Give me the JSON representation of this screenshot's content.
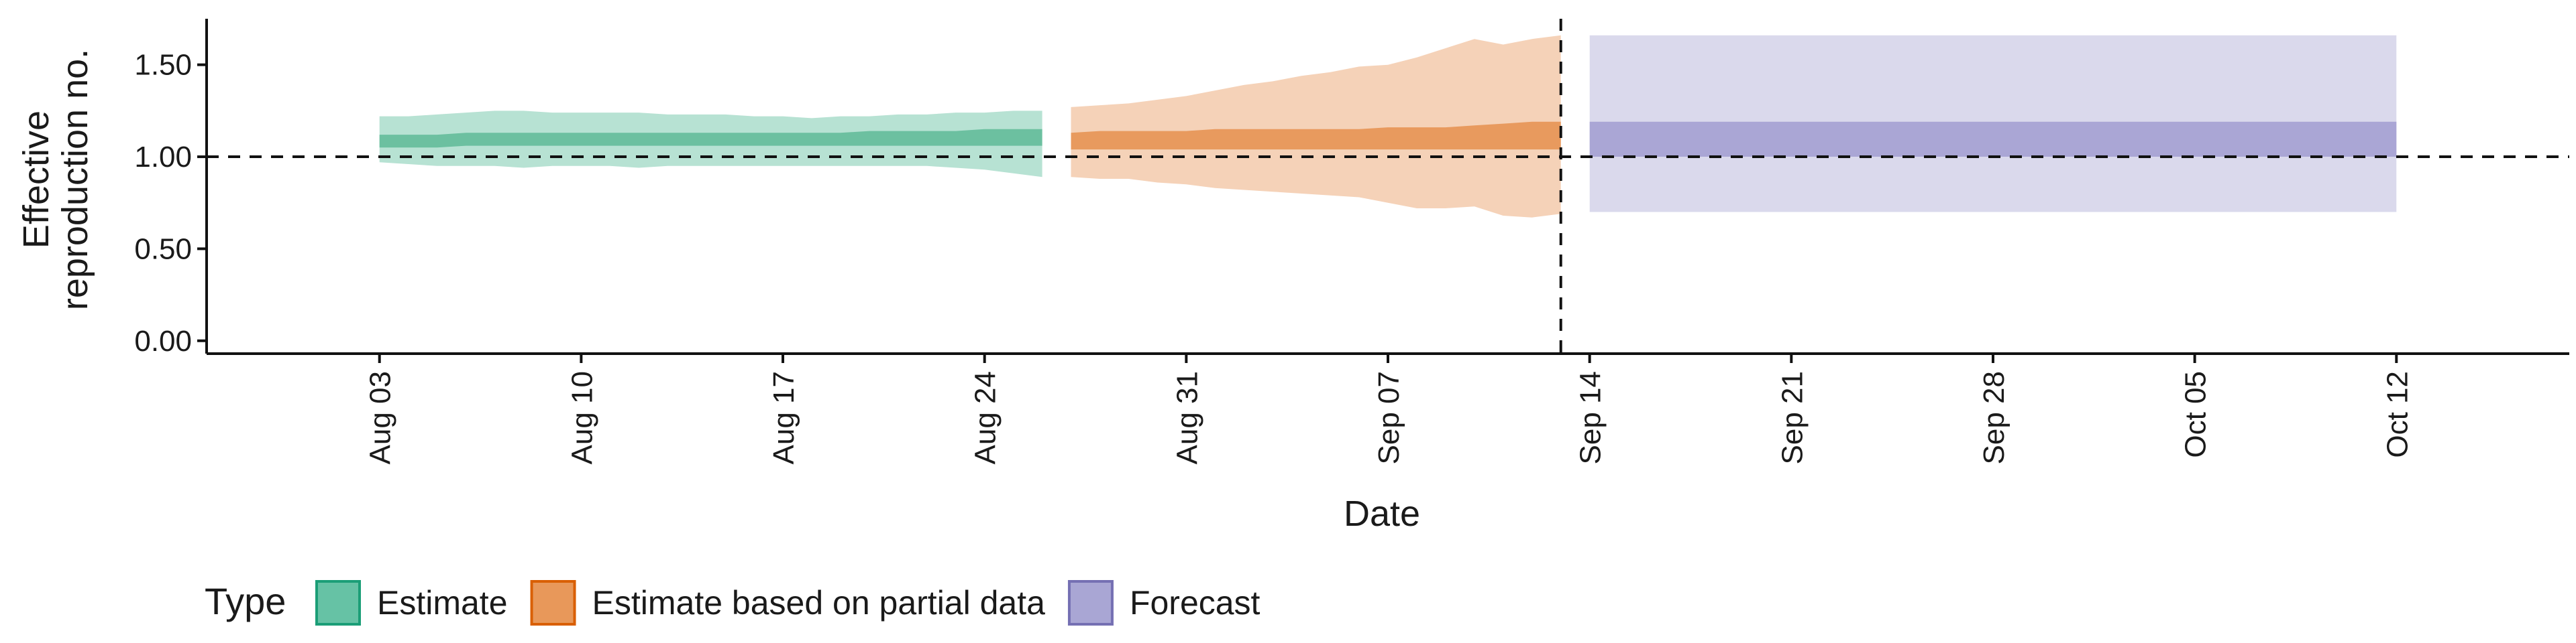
{
  "chart_data": {
    "type": "area",
    "xlabel": "Date",
    "ylabel_lines": [
      "Effective",
      "reproduction no."
    ],
    "yticks": [
      "0.00",
      "0.50",
      "1.00",
      "1.50"
    ],
    "ylim": [
      -0.07,
      1.75
    ],
    "xlim": [
      "2020-07-28",
      "2020-10-18"
    ],
    "x_ticks": [
      {
        "date": "2020-08-03",
        "label": "Aug 03"
      },
      {
        "date": "2020-08-10",
        "label": "Aug 10"
      },
      {
        "date": "2020-08-17",
        "label": "Aug 17"
      },
      {
        "date": "2020-08-24",
        "label": "Aug 24"
      },
      {
        "date": "2020-08-31",
        "label": "Aug 31"
      },
      {
        "date": "2020-09-07",
        "label": "Sep 07"
      },
      {
        "date": "2020-09-14",
        "label": "Sep 14"
      },
      {
        "date": "2020-09-21",
        "label": "Sep 21"
      },
      {
        "date": "2020-09-28",
        "label": "Sep 28"
      },
      {
        "date": "2020-10-05",
        "label": "Oct 05"
      },
      {
        "date": "2020-10-12",
        "label": "Oct 12"
      }
    ],
    "reference_line_y": 1.0,
    "vertical_line_date": "2020-09-13",
    "legend": {
      "title": "Type",
      "position": "bottom",
      "entries": [
        {
          "label": "Estimate",
          "fill": "#66c2a5",
          "stroke": "#1b9e77"
        },
        {
          "label": "Estimate based on partial data",
          "fill": "#e8985a",
          "stroke": "#d95f02"
        },
        {
          "label": "Forecast",
          "fill": "#a9a6d4",
          "stroke": "#7570b3"
        }
      ]
    },
    "series": [
      {
        "name": "Estimate",
        "outer_color": "#b7e2d3",
        "inner_color": "#6cc0a0",
        "x": [
          "2020-08-03",
          "2020-08-04",
          "2020-08-05",
          "2020-08-06",
          "2020-08-07",
          "2020-08-08",
          "2020-08-09",
          "2020-08-10",
          "2020-08-11",
          "2020-08-12",
          "2020-08-13",
          "2020-08-14",
          "2020-08-15",
          "2020-08-16",
          "2020-08-17",
          "2020-08-18",
          "2020-08-19",
          "2020-08-20",
          "2020-08-21",
          "2020-08-22",
          "2020-08-23",
          "2020-08-24",
          "2020-08-25",
          "2020-08-26"
        ],
        "lower90": [
          0.97,
          0.96,
          0.95,
          0.95,
          0.95,
          0.94,
          0.95,
          0.95,
          0.95,
          0.94,
          0.95,
          0.95,
          0.95,
          0.95,
          0.95,
          0.95,
          0.95,
          0.95,
          0.95,
          0.95,
          0.94,
          0.93,
          0.91,
          0.89
        ],
        "upper90": [
          1.22,
          1.22,
          1.23,
          1.24,
          1.25,
          1.25,
          1.24,
          1.24,
          1.24,
          1.24,
          1.23,
          1.23,
          1.23,
          1.22,
          1.22,
          1.21,
          1.22,
          1.22,
          1.23,
          1.23,
          1.24,
          1.24,
          1.25,
          1.25
        ],
        "lower50": [
          1.05,
          1.05,
          1.05,
          1.06,
          1.06,
          1.06,
          1.06,
          1.06,
          1.06,
          1.06,
          1.06,
          1.06,
          1.06,
          1.06,
          1.06,
          1.06,
          1.06,
          1.06,
          1.06,
          1.06,
          1.06,
          1.06,
          1.06,
          1.06
        ],
        "upper50": [
          1.12,
          1.12,
          1.12,
          1.13,
          1.13,
          1.13,
          1.13,
          1.13,
          1.13,
          1.13,
          1.13,
          1.13,
          1.13,
          1.13,
          1.13,
          1.13,
          1.13,
          1.14,
          1.14,
          1.14,
          1.14,
          1.15,
          1.15,
          1.15
        ]
      },
      {
        "name": "Estimate based on partial data",
        "outer_color": "#f5d2b8",
        "inner_color": "#e89a5e",
        "x": [
          "2020-08-27",
          "2020-08-28",
          "2020-08-29",
          "2020-08-30",
          "2020-08-31",
          "2020-09-01",
          "2020-09-02",
          "2020-09-03",
          "2020-09-04",
          "2020-09-05",
          "2020-09-06",
          "2020-09-07",
          "2020-09-08",
          "2020-09-09",
          "2020-09-10",
          "2020-09-11",
          "2020-09-12",
          "2020-09-13"
        ],
        "lower90": [
          0.89,
          0.88,
          0.88,
          0.86,
          0.85,
          0.83,
          0.82,
          0.81,
          0.8,
          0.79,
          0.78,
          0.75,
          0.72,
          0.72,
          0.73,
          0.68,
          0.67,
          0.69
        ],
        "upper90": [
          1.27,
          1.28,
          1.29,
          1.31,
          1.33,
          1.36,
          1.39,
          1.41,
          1.44,
          1.46,
          1.49,
          1.5,
          1.54,
          1.59,
          1.64,
          1.61,
          1.64,
          1.66
        ],
        "lower50": [
          1.04,
          1.04,
          1.04,
          1.04,
          1.04,
          1.04,
          1.04,
          1.04,
          1.04,
          1.04,
          1.04,
          1.04,
          1.04,
          1.04,
          1.04,
          1.04,
          1.04,
          1.04
        ],
        "upper50": [
          1.13,
          1.14,
          1.14,
          1.14,
          1.14,
          1.15,
          1.15,
          1.15,
          1.15,
          1.15,
          1.15,
          1.16,
          1.16,
          1.16,
          1.17,
          1.18,
          1.19,
          1.19
        ]
      },
      {
        "name": "Forecast",
        "outer_color": "#dad9ec",
        "inner_color": "#aaa6d5",
        "x": [
          "2020-09-14",
          "2020-10-12"
        ],
        "lower90": [
          0.7,
          0.7
        ],
        "upper90": [
          1.66,
          1.66
        ],
        "lower50": [
          1.0,
          1.0
        ],
        "upper50": [
          1.19,
          1.19
        ]
      }
    ]
  }
}
